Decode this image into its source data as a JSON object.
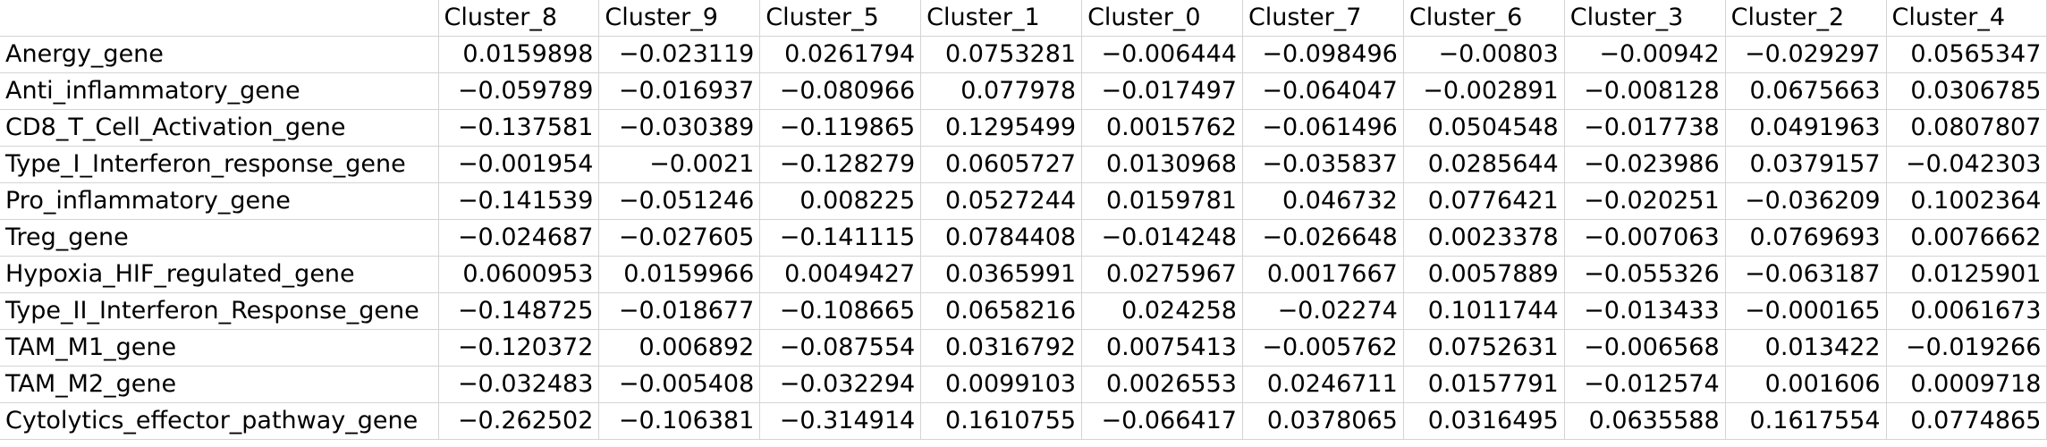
{
  "sheet": {
    "corner": "",
    "columns": [
      "Cluster_8",
      "Cluster_9",
      "Cluster_5",
      "Cluster_1",
      "Cluster_0",
      "Cluster_7",
      "Cluster_6",
      "Cluster_3",
      "Cluster_2",
      "Cluster_4"
    ],
    "rows": [
      {
        "label": "Anergy_gene",
        "values": [
          "0.0159898",
          "−0.023119",
          "0.0261794",
          "0.0753281",
          "−0.006444",
          "−0.098496",
          "−0.00803",
          "−0.00942",
          "−0.029297",
          "0.0565347"
        ]
      },
      {
        "label": "Anti_inflammatory_gene",
        "values": [
          "−0.059789",
          "−0.016937",
          "−0.080966",
          "0.077978",
          "−0.017497",
          "−0.064047",
          "−0.002891",
          "−0.008128",
          "0.0675663",
          "0.0306785"
        ]
      },
      {
        "label": "CD8_T_Cell_Activation_gene",
        "values": [
          "−0.137581",
          "−0.030389",
          "−0.119865",
          "0.1295499",
          "0.0015762",
          "−0.061496",
          "0.0504548",
          "−0.017738",
          "0.0491963",
          "0.0807807"
        ]
      },
      {
        "label": "Type_I_Interferon_response_gene",
        "values": [
          "−0.001954",
          "−0.0021",
          "−0.128279",
          "0.0605727",
          "0.0130968",
          "−0.035837",
          "0.0285644",
          "−0.023986",
          "0.0379157",
          "−0.042303"
        ]
      },
      {
        "label": "Pro_inflammatory_gene",
        "values": [
          "−0.141539",
          "−0.051246",
          "0.008225",
          "0.0527244",
          "0.0159781",
          "0.046732",
          "0.0776421",
          "−0.020251",
          "−0.036209",
          "0.1002364"
        ]
      },
      {
        "label": "Treg_gene",
        "values": [
          "−0.024687",
          "−0.027605",
          "−0.141115",
          "0.0784408",
          "−0.014248",
          "−0.026648",
          "0.0023378",
          "−0.007063",
          "0.0769693",
          "0.0076662"
        ]
      },
      {
        "label": "Hypoxia_HIF_regulated_gene",
        "values": [
          "0.0600953",
          "0.0159966",
          "0.0049427",
          "0.0365991",
          "0.0275967",
          "0.0017667",
          "0.0057889",
          "−0.055326",
          "−0.063187",
          "0.0125901"
        ]
      },
      {
        "label": "Type_II_Interferon_Response_gene",
        "values": [
          "−0.148725",
          "−0.018677",
          "−0.108665",
          "0.0658216",
          "0.024258",
          "−0.02274",
          "0.1011744",
          "−0.013433",
          "−0.000165",
          "0.0061673"
        ]
      },
      {
        "label": "TAM_M1_gene",
        "values": [
          "−0.120372",
          "0.006892",
          "−0.087554",
          "0.0316792",
          "0.0075413",
          "−0.005762",
          "0.0752631",
          "−0.006568",
          "0.013422",
          "−0.019266"
        ]
      },
      {
        "label": "TAM_M2_gene",
        "values": [
          "−0.032483",
          "−0.005408",
          "−0.032294",
          "0.0099103",
          "0.0026553",
          "0.0246711",
          "0.0157791",
          "−0.012574",
          "0.001606",
          "0.0009718"
        ]
      },
      {
        "label": "Cytolytics_effector_pathway_gene",
        "values": [
          "−0.262502",
          "−0.106381",
          "−0.314914",
          "0.1610755",
          "−0.066417",
          "0.0378065",
          "0.0316495",
          "0.0635588",
          "0.1617554",
          "0.0774865"
        ]
      }
    ]
  }
}
